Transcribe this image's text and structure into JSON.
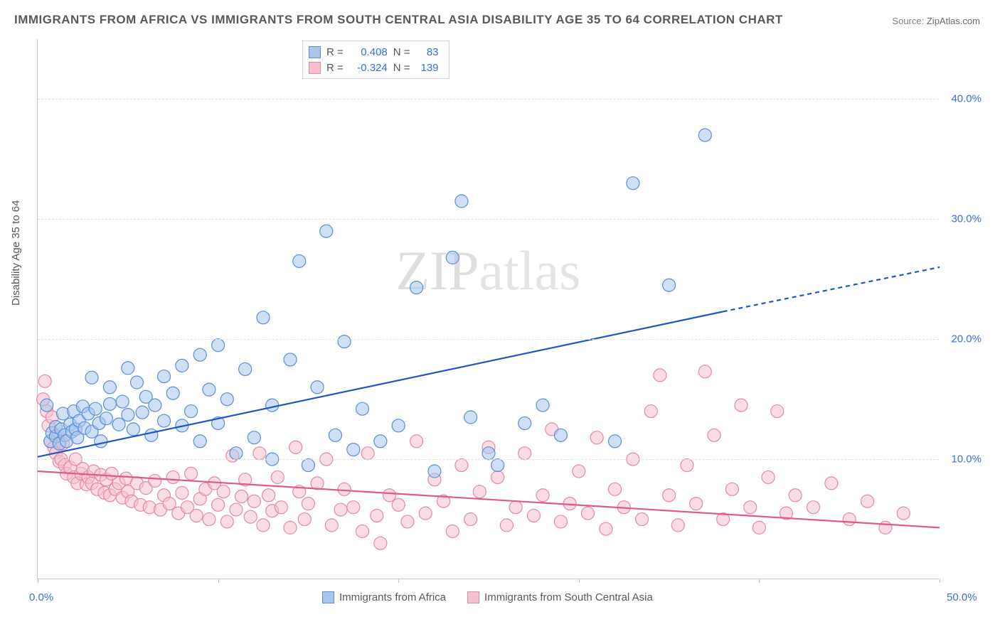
{
  "title": "IMMIGRANTS FROM AFRICA VS IMMIGRANTS FROM SOUTH CENTRAL ASIA DISABILITY AGE 35 TO 64 CORRELATION CHART",
  "source_label": "Source:",
  "source_value": "ZipAtlas.com",
  "watermark": "ZIPatlas",
  "ylabel": "Disability Age 35 to 64",
  "chart": {
    "type": "scatter",
    "background_color": "#ffffff",
    "grid_color": "#e2e2e2",
    "axis_color": "#c4c4c4",
    "tick_label_color": "#3b6fd6",
    "label_fontsize": 15,
    "title_fontsize": 17,
    "title_color": "#595959",
    "xlim": [
      0,
      50
    ],
    "ylim": [
      0,
      45
    ],
    "x_ticks": [
      0,
      10,
      20,
      30,
      40,
      50
    ],
    "y_ticks": [
      10,
      20,
      30,
      40
    ],
    "x_tick_labels": {
      "0": "0.0%",
      "50": "50.0%"
    },
    "y_tick_labels": {
      "10": "10.0%",
      "20": "20.0%",
      "30": "30.0%",
      "40": "40.0%"
    },
    "marker_radius": 9,
    "marker_opacity": 0.55,
    "line_width": 2.2,
    "series": [
      {
        "name": "Immigrants from Africa",
        "color_fill": "#a8c5ec",
        "color_stroke": "#5a8fd6",
        "trend_color": "#1f57c4",
        "R": 0.408,
        "N": 83,
        "trend": {
          "x1": 0,
          "y1": 10.2,
          "x2": 38,
          "y2": 22.3,
          "x_dash_from": 38,
          "x2_full": 50,
          "y2_full": 26.0
        },
        "points": [
          [
            0.5,
            14.5
          ],
          [
            0.7,
            11.5
          ],
          [
            0.8,
            12.2
          ],
          [
            1.0,
            11.9
          ],
          [
            1.0,
            12.7
          ],
          [
            1.2,
            11.3
          ],
          [
            1.3,
            12.5
          ],
          [
            1.4,
            13.8
          ],
          [
            1.5,
            12.0
          ],
          [
            1.6,
            11.5
          ],
          [
            1.8,
            12.9
          ],
          [
            1.9,
            12.3
          ],
          [
            2.0,
            14.0
          ],
          [
            2.1,
            12.5
          ],
          [
            2.2,
            11.8
          ],
          [
            2.3,
            13.2
          ],
          [
            2.5,
            14.4
          ],
          [
            2.6,
            12.6
          ],
          [
            2.8,
            13.8
          ],
          [
            3.0,
            12.3
          ],
          [
            3.0,
            16.8
          ],
          [
            3.2,
            14.2
          ],
          [
            3.4,
            13.0
          ],
          [
            3.5,
            11.5
          ],
          [
            3.8,
            13.4
          ],
          [
            4.0,
            14.6
          ],
          [
            4.0,
            16.0
          ],
          [
            4.5,
            12.9
          ],
          [
            4.7,
            14.8
          ],
          [
            5.0,
            13.7
          ],
          [
            5.0,
            17.6
          ],
          [
            5.3,
            12.5
          ],
          [
            5.5,
            16.4
          ],
          [
            5.8,
            13.9
          ],
          [
            6.0,
            15.2
          ],
          [
            6.3,
            12.0
          ],
          [
            6.5,
            14.5
          ],
          [
            7.0,
            16.9
          ],
          [
            7.0,
            13.2
          ],
          [
            7.5,
            15.5
          ],
          [
            8.0,
            17.8
          ],
          [
            8.0,
            12.8
          ],
          [
            8.5,
            14.0
          ],
          [
            9.0,
            18.7
          ],
          [
            9.0,
            11.5
          ],
          [
            9.5,
            15.8
          ],
          [
            10.0,
            13.0
          ],
          [
            10.0,
            19.5
          ],
          [
            10.5,
            15.0
          ],
          [
            11.0,
            10.5
          ],
          [
            11.5,
            17.5
          ],
          [
            12.0,
            11.8
          ],
          [
            12.5,
            21.8
          ],
          [
            13.0,
            14.5
          ],
          [
            13.0,
            10.0
          ],
          [
            14.0,
            18.3
          ],
          [
            14.5,
            26.5
          ],
          [
            15.0,
            9.5
          ],
          [
            15.5,
            16.0
          ],
          [
            16.0,
            29.0
          ],
          [
            16.5,
            12.0
          ],
          [
            17.0,
            19.8
          ],
          [
            17.5,
            10.8
          ],
          [
            18.0,
            14.2
          ],
          [
            19.0,
            11.5
          ],
          [
            20.0,
            12.8
          ],
          [
            21.0,
            24.3
          ],
          [
            22.0,
            9.0
          ],
          [
            23.0,
            26.8
          ],
          [
            23.5,
            31.5
          ],
          [
            24.0,
            13.5
          ],
          [
            25.0,
            10.5
          ],
          [
            25.5,
            9.5
          ],
          [
            27.0,
            13.0
          ],
          [
            28.0,
            14.5
          ],
          [
            29.0,
            12.0
          ],
          [
            32.0,
            11.5
          ],
          [
            33.0,
            33.0
          ],
          [
            35.0,
            24.5
          ],
          [
            37.0,
            37.0
          ]
        ]
      },
      {
        "name": "Immigrants from South Central Asia",
        "color_fill": "#f5c0cd",
        "color_stroke": "#e48aa3",
        "trend_color": "#e05a87",
        "R": -0.324,
        "N": 139,
        "trend": {
          "x1": 0,
          "y1": 9.0,
          "x2": 50,
          "y2": 4.3
        },
        "points": [
          [
            0.3,
            15.0
          ],
          [
            0.4,
            16.5
          ],
          [
            0.5,
            14.0
          ],
          [
            0.6,
            12.8
          ],
          [
            0.7,
            11.5
          ],
          [
            0.8,
            13.5
          ],
          [
            0.9,
            11.0
          ],
          [
            1.0,
            10.5
          ],
          [
            1.1,
            12.0
          ],
          [
            1.2,
            9.8
          ],
          [
            1.3,
            10.0
          ],
          [
            1.4,
            11.3
          ],
          [
            1.5,
            9.5
          ],
          [
            1.6,
            8.8
          ],
          [
            1.8,
            9.3
          ],
          [
            2.0,
            8.5
          ],
          [
            2.1,
            10.0
          ],
          [
            2.2,
            8.0
          ],
          [
            2.4,
            8.8
          ],
          [
            2.5,
            9.2
          ],
          [
            2.7,
            7.9
          ],
          [
            2.8,
            8.5
          ],
          [
            3.0,
            8.0
          ],
          [
            3.1,
            9.0
          ],
          [
            3.3,
            7.5
          ],
          [
            3.5,
            8.7
          ],
          [
            3.7,
            7.2
          ],
          [
            3.8,
            8.3
          ],
          [
            4.0,
            7.0
          ],
          [
            4.1,
            8.8
          ],
          [
            4.3,
            7.5
          ],
          [
            4.5,
            8.0
          ],
          [
            4.7,
            6.8
          ],
          [
            4.9,
            8.4
          ],
          [
            5.0,
            7.3
          ],
          [
            5.2,
            6.5
          ],
          [
            5.5,
            8.0
          ],
          [
            5.7,
            6.2
          ],
          [
            6.0,
            7.6
          ],
          [
            6.2,
            6.0
          ],
          [
            6.5,
            8.2
          ],
          [
            6.8,
            5.8
          ],
          [
            7.0,
            7.0
          ],
          [
            7.3,
            6.3
          ],
          [
            7.5,
            8.5
          ],
          [
            7.8,
            5.5
          ],
          [
            8.0,
            7.2
          ],
          [
            8.3,
            6.0
          ],
          [
            8.5,
            8.8
          ],
          [
            8.8,
            5.3
          ],
          [
            9.0,
            6.7
          ],
          [
            9.3,
            7.5
          ],
          [
            9.5,
            5.0
          ],
          [
            9.8,
            8.0
          ],
          [
            10.0,
            6.2
          ],
          [
            10.3,
            7.3
          ],
          [
            10.5,
            4.8
          ],
          [
            10.8,
            10.3
          ],
          [
            11.0,
            5.8
          ],
          [
            11.3,
            6.9
          ],
          [
            11.5,
            8.3
          ],
          [
            11.8,
            5.2
          ],
          [
            12.0,
            6.5
          ],
          [
            12.3,
            10.5
          ],
          [
            12.5,
            4.5
          ],
          [
            12.8,
            7.0
          ],
          [
            13.0,
            5.7
          ],
          [
            13.3,
            8.5
          ],
          [
            13.5,
            6.0
          ],
          [
            14.0,
            4.3
          ],
          [
            14.3,
            11.0
          ],
          [
            14.5,
            7.3
          ],
          [
            14.8,
            5.0
          ],
          [
            15.0,
            6.3
          ],
          [
            15.5,
            8.0
          ],
          [
            16.0,
            10.0
          ],
          [
            16.3,
            4.5
          ],
          [
            16.8,
            5.8
          ],
          [
            17.0,
            7.5
          ],
          [
            17.5,
            6.0
          ],
          [
            18.0,
            4.0
          ],
          [
            18.3,
            10.5
          ],
          [
            18.8,
            5.3
          ],
          [
            19.0,
            3.0
          ],
          [
            19.5,
            7.0
          ],
          [
            20.0,
            6.2
          ],
          [
            20.5,
            4.8
          ],
          [
            21.0,
            11.5
          ],
          [
            21.5,
            5.5
          ],
          [
            22.0,
            8.3
          ],
          [
            22.5,
            6.5
          ],
          [
            23.0,
            4.0
          ],
          [
            23.5,
            9.5
          ],
          [
            24.0,
            5.0
          ],
          [
            24.5,
            7.3
          ],
          [
            25.0,
            11.0
          ],
          [
            25.5,
            8.5
          ],
          [
            26.0,
            4.5
          ],
          [
            26.5,
            6.0
          ],
          [
            27.0,
            10.5
          ],
          [
            27.5,
            5.3
          ],
          [
            28.0,
            7.0
          ],
          [
            28.5,
            12.5
          ],
          [
            29.0,
            4.8
          ],
          [
            29.5,
            6.3
          ],
          [
            30.0,
            9.0
          ],
          [
            30.5,
            5.5
          ],
          [
            31.0,
            11.8
          ],
          [
            31.5,
            4.2
          ],
          [
            32.0,
            7.5
          ],
          [
            32.5,
            6.0
          ],
          [
            33.0,
            10.0
          ],
          [
            33.5,
            5.0
          ],
          [
            34.0,
            14.0
          ],
          [
            34.5,
            17.0
          ],
          [
            35.0,
            7.0
          ],
          [
            35.5,
            4.5
          ],
          [
            36.0,
            9.5
          ],
          [
            36.5,
            6.3
          ],
          [
            37.0,
            17.3
          ],
          [
            37.5,
            12.0
          ],
          [
            38.0,
            5.0
          ],
          [
            38.5,
            7.5
          ],
          [
            39.0,
            14.5
          ],
          [
            39.5,
            6.0
          ],
          [
            40.0,
            4.3
          ],
          [
            40.5,
            8.5
          ],
          [
            41.0,
            14.0
          ],
          [
            41.5,
            5.5
          ],
          [
            42.0,
            7.0
          ],
          [
            43.0,
            6.0
          ],
          [
            44.0,
            8.0
          ],
          [
            45.0,
            5.0
          ],
          [
            46.0,
            6.5
          ],
          [
            47.0,
            4.3
          ],
          [
            48.0,
            5.5
          ]
        ]
      }
    ]
  },
  "legend_stats_labels": {
    "R": "R =",
    "N": "N ="
  }
}
